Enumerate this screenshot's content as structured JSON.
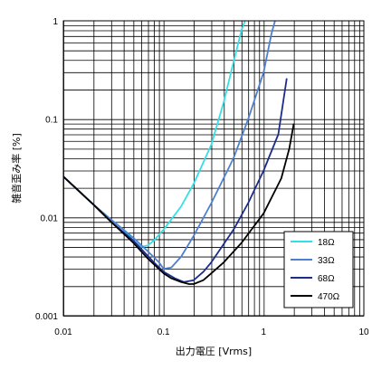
{
  "chart_data": {
    "type": "line",
    "xlabel": "出力電圧 [Vrms]",
    "ylabel": "雑音歪み率 [%]",
    "x_scale": "log",
    "y_scale": "log",
    "xlim": [
      0.01,
      10
    ],
    "ylim": [
      0.001,
      1
    ],
    "x_ticks": [
      {
        "value": 0.01,
        "label": "0.01"
      },
      {
        "value": 0.1,
        "label": "0.1"
      },
      {
        "value": 1,
        "label": "1"
      },
      {
        "value": 10,
        "label": "10"
      }
    ],
    "y_ticks": [
      {
        "value": 1,
        "label": "1"
      },
      {
        "value": 0.1,
        "label": "0.1"
      },
      {
        "value": 0.01,
        "label": "0.01"
      },
      {
        "value": 0.001,
        "label": "0.001"
      }
    ],
    "grid": true,
    "legend_position": "bottom-right",
    "series": [
      {
        "name": "18Ω",
        "color": "#33e0e6",
        "points": [
          [
            0.01,
            0.026
          ],
          [
            0.02,
            0.0135
          ],
          [
            0.03,
            0.0095
          ],
          [
            0.04,
            0.0075
          ],
          [
            0.05,
            0.0058
          ],
          [
            0.06,
            0.005
          ],
          [
            0.07,
            0.0052
          ],
          [
            0.08,
            0.0058
          ],
          [
            0.1,
            0.0075
          ],
          [
            0.15,
            0.013
          ],
          [
            0.2,
            0.022
          ],
          [
            0.3,
            0.055
          ],
          [
            0.4,
            0.15
          ],
          [
            0.5,
            0.38
          ],
          [
            0.6,
            0.8
          ],
          [
            0.65,
            1.0
          ]
        ]
      },
      {
        "name": "33Ω",
        "color": "#4f7fd0",
        "points": [
          [
            0.01,
            0.026
          ],
          [
            0.02,
            0.0135
          ],
          [
            0.03,
            0.0095
          ],
          [
            0.05,
            0.0062
          ],
          [
            0.07,
            0.0045
          ],
          [
            0.09,
            0.0035
          ],
          [
            0.1,
            0.003
          ],
          [
            0.12,
            0.0031
          ],
          [
            0.15,
            0.004
          ],
          [
            0.2,
            0.0065
          ],
          [
            0.3,
            0.014
          ],
          [
            0.5,
            0.04
          ],
          [
            0.7,
            0.1
          ],
          [
            1.0,
            0.3
          ],
          [
            1.2,
            0.75
          ],
          [
            1.3,
            1.0
          ]
        ]
      },
      {
        "name": "68Ω",
        "color": "#1a2d8c",
        "points": [
          [
            0.01,
            0.026
          ],
          [
            0.02,
            0.0135
          ],
          [
            0.03,
            0.009
          ],
          [
            0.05,
            0.0058
          ],
          [
            0.08,
            0.0035
          ],
          [
            0.1,
            0.0028
          ],
          [
            0.13,
            0.0024
          ],
          [
            0.16,
            0.0022
          ],
          [
            0.2,
            0.0023
          ],
          [
            0.25,
            0.0028
          ],
          [
            0.3,
            0.0035
          ],
          [
            0.5,
            0.0075
          ],
          [
            0.7,
            0.014
          ],
          [
            1.0,
            0.03
          ],
          [
            1.4,
            0.07
          ],
          [
            1.7,
            0.26
          ]
        ]
      },
      {
        "name": "470Ω",
        "color": "#000000",
        "points": [
          [
            0.01,
            0.026
          ],
          [
            0.02,
            0.0135
          ],
          [
            0.03,
            0.009
          ],
          [
            0.05,
            0.0055
          ],
          [
            0.07,
            0.0038
          ],
          [
            0.1,
            0.0027
          ],
          [
            0.12,
            0.0024
          ],
          [
            0.15,
            0.0022
          ],
          [
            0.18,
            0.0021
          ],
          [
            0.2,
            0.0021
          ],
          [
            0.25,
            0.0023
          ],
          [
            0.3,
            0.0027
          ],
          [
            0.4,
            0.0035
          ],
          [
            0.6,
            0.0055
          ],
          [
            1.0,
            0.011
          ],
          [
            1.5,
            0.025
          ],
          [
            1.8,
            0.05
          ],
          [
            2.0,
            0.09
          ]
        ]
      }
    ]
  }
}
